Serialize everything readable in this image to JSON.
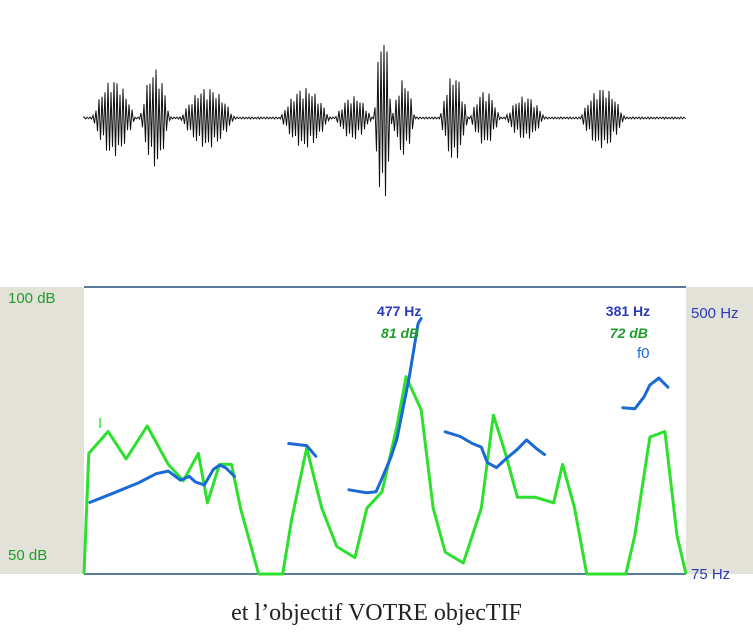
{
  "caption": "et l’objectif VOTRE objecTIF",
  "colors": {
    "waveform": "#111111",
    "intensity": "#2ee02e",
    "pitch": "#1a6ad6",
    "db_text": "#1f9d2a",
    "hz_text": "#2a3bb5",
    "panel": "#e2e2d9",
    "axis": "#5a7a9a"
  },
  "chart_data": [
    {
      "type": "line",
      "title": "",
      "xlabel": "",
      "ylabel": "",
      "left_axis": {
        "top_label": "100 dB",
        "bottom_label": "50 dB",
        "range": [
          50,
          100
        ]
      },
      "right_axis": {
        "top_label": "500 Hz",
        "bottom_label": "75 Hz",
        "range": [
          75,
          500
        ],
        "scale": "log"
      },
      "x_range": [
        0,
        1
      ],
      "series": [
        {
          "key": "intensity",
          "name": "I",
          "axis": "left",
          "points": [
            [
              0.0,
              50
            ],
            [
              0.008,
              72
            ],
            [
              0.04,
              76
            ],
            [
              0.07,
              71
            ],
            [
              0.105,
              77
            ],
            [
              0.14,
              70
            ],
            [
              0.165,
              67
            ],
            [
              0.19,
              72
            ],
            [
              0.205,
              63
            ],
            [
              0.225,
              70
            ],
            [
              0.245,
              70
            ],
            [
              0.26,
              62
            ],
            [
              0.29,
              45
            ],
            [
              0.33,
              45
            ],
            [
              0.345,
              60
            ],
            [
              0.37,
              73
            ],
            [
              0.395,
              62
            ],
            [
              0.42,
              55
            ],
            [
              0.45,
              53
            ],
            [
              0.47,
              62
            ],
            [
              0.495,
              65
            ],
            [
              0.52,
              77
            ],
            [
              0.535,
              86
            ],
            [
              0.56,
              80
            ],
            [
              0.58,
              62
            ],
            [
              0.6,
              54
            ],
            [
              0.63,
              52
            ],
            [
              0.66,
              62
            ],
            [
              0.68,
              79
            ],
            [
              0.7,
              72
            ],
            [
              0.72,
              64
            ],
            [
              0.75,
              64
            ],
            [
              0.78,
              63
            ],
            [
              0.795,
              70
            ],
            [
              0.815,
              62
            ],
            [
              0.835,
              49
            ],
            [
              0.87,
              45
            ],
            [
              0.9,
              45
            ],
            [
              0.915,
              57
            ],
            [
              0.94,
              75
            ],
            [
              0.965,
              76
            ],
            [
              0.985,
              57
            ],
            [
              1.0,
              50
            ]
          ]
        },
        {
          "key": "pitch",
          "name": "f0",
          "axis": "right",
          "segments": [
            [
              [
                0.01,
                126
              ],
              [
                0.05,
                135
              ],
              [
                0.09,
                145
              ],
              [
                0.12,
                155
              ],
              [
                0.14,
                158
              ],
              [
                0.16,
                148
              ],
              [
                0.175,
                152
              ],
              [
                0.185,
                146
              ],
              [
                0.2,
                143
              ],
              [
                0.215,
                160
              ],
              [
                0.225,
                165
              ],
              [
                0.235,
                162
              ],
              [
                0.25,
                152
              ]
            ],
            [
              [
                0.34,
                193
              ],
              [
                0.37,
                190
              ],
              [
                0.385,
                176
              ]
            ],
            [
              [
                0.44,
                138
              ],
              [
                0.47,
                135
              ],
              [
                0.485,
                136
              ],
              [
                0.495,
                150
              ],
              [
                0.51,
                175
              ],
              [
                0.52,
                200
              ],
              [
                0.54,
                310
              ],
              [
                0.555,
                460
              ],
              [
                0.56,
                477
              ]
            ],
            [
              [
                0.6,
                210
              ],
              [
                0.625,
                203
              ],
              [
                0.645,
                193
              ],
              [
                0.66,
                188
              ],
              [
                0.67,
                168
              ],
              [
                0.685,
                162
              ],
              [
                0.7,
                172
              ],
              [
                0.72,
                185
              ],
              [
                0.735,
                198
              ],
              [
                0.75,
                187
              ],
              [
                0.765,
                178
              ]
            ],
            [
              [
                0.895,
                250
              ],
              [
                0.915,
                248
              ],
              [
                0.93,
                270
              ],
              [
                0.94,
                295
              ],
              [
                0.955,
                310
              ],
              [
                0.97,
                290
              ]
            ]
          ]
        }
      ],
      "annotations": [
        {
          "text_hz": "477 Hz",
          "text_db": "81 dB",
          "x": 0.52
        },
        {
          "text_hz": "381 Hz",
          "text_db": "72 dB",
          "x": 0.9
        }
      ]
    }
  ]
}
